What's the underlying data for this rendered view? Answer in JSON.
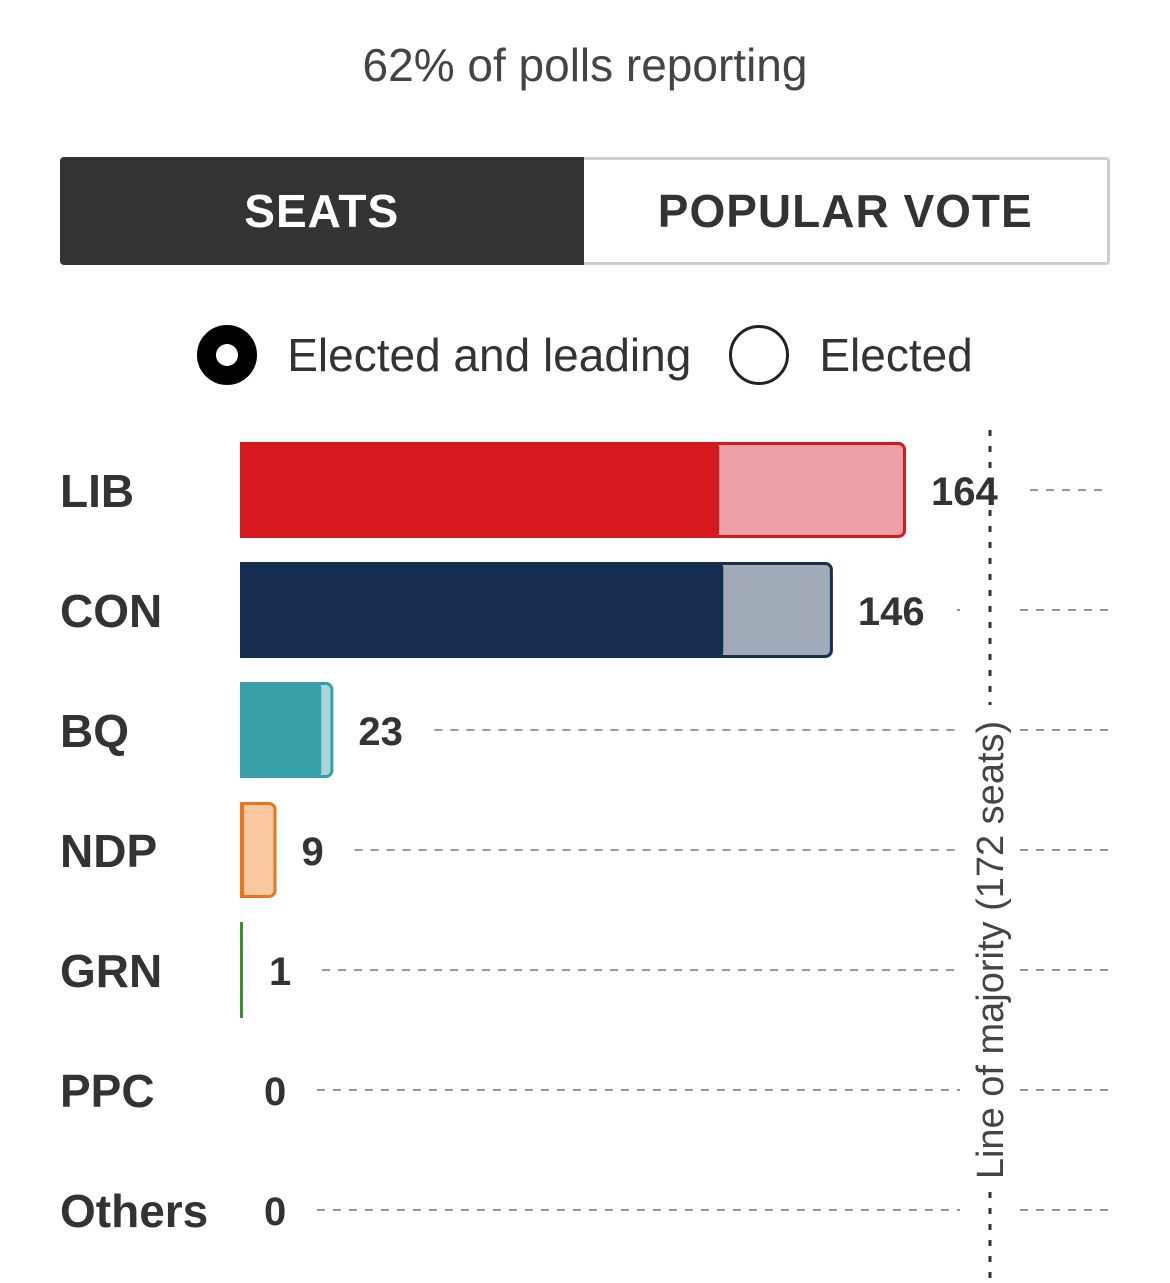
{
  "reporting_text": "62% of polls reporting",
  "tabs": [
    {
      "label": "SEATS",
      "active": true
    },
    {
      "label": "POPULAR VOTE",
      "active": false
    }
  ],
  "radio_options": [
    {
      "label": "Elected and leading",
      "selected": true
    },
    {
      "label": "Elected",
      "selected": false
    }
  ],
  "chart_data": {
    "type": "bar",
    "orientation": "horizontal",
    "categories": [
      "LIB",
      "CON",
      "BQ",
      "NDP",
      "GRN",
      "PPC",
      "Others"
    ],
    "series": [
      {
        "name": "Elected and leading",
        "values": [
          164,
          146,
          23,
          9,
          1,
          0,
          0
        ]
      },
      {
        "name": "Elected",
        "values": [
          118,
          119,
          20,
          1,
          1,
          0,
          0
        ]
      }
    ],
    "value_labels": [
      "164",
      "146",
      "23",
      "9",
      "1",
      "0",
      "0"
    ],
    "xlim": [
      0,
      172
    ],
    "majority_line": {
      "value": 172,
      "label": "Line of majority (172 seats)"
    },
    "colors": {
      "LIB": {
        "dark": "#d71920",
        "light": "#eea1a6"
      },
      "CON": {
        "dark": "#162e52",
        "light": "#a1abb8"
      },
      "BQ": {
        "dark": "#38a1a7",
        "light": "#a6d6d9"
      },
      "NDP": {
        "dark": "#e8761e",
        "light": "#f8c9a0"
      },
      "GRN": {
        "dark": "#3c8d2f",
        "light": "#b5d8ad"
      },
      "PPC": {
        "dark": "#5b3f8c",
        "light": "#c9bcdf"
      },
      "Others": {
        "dark": "#888888",
        "light": "#dddddd"
      }
    }
  }
}
